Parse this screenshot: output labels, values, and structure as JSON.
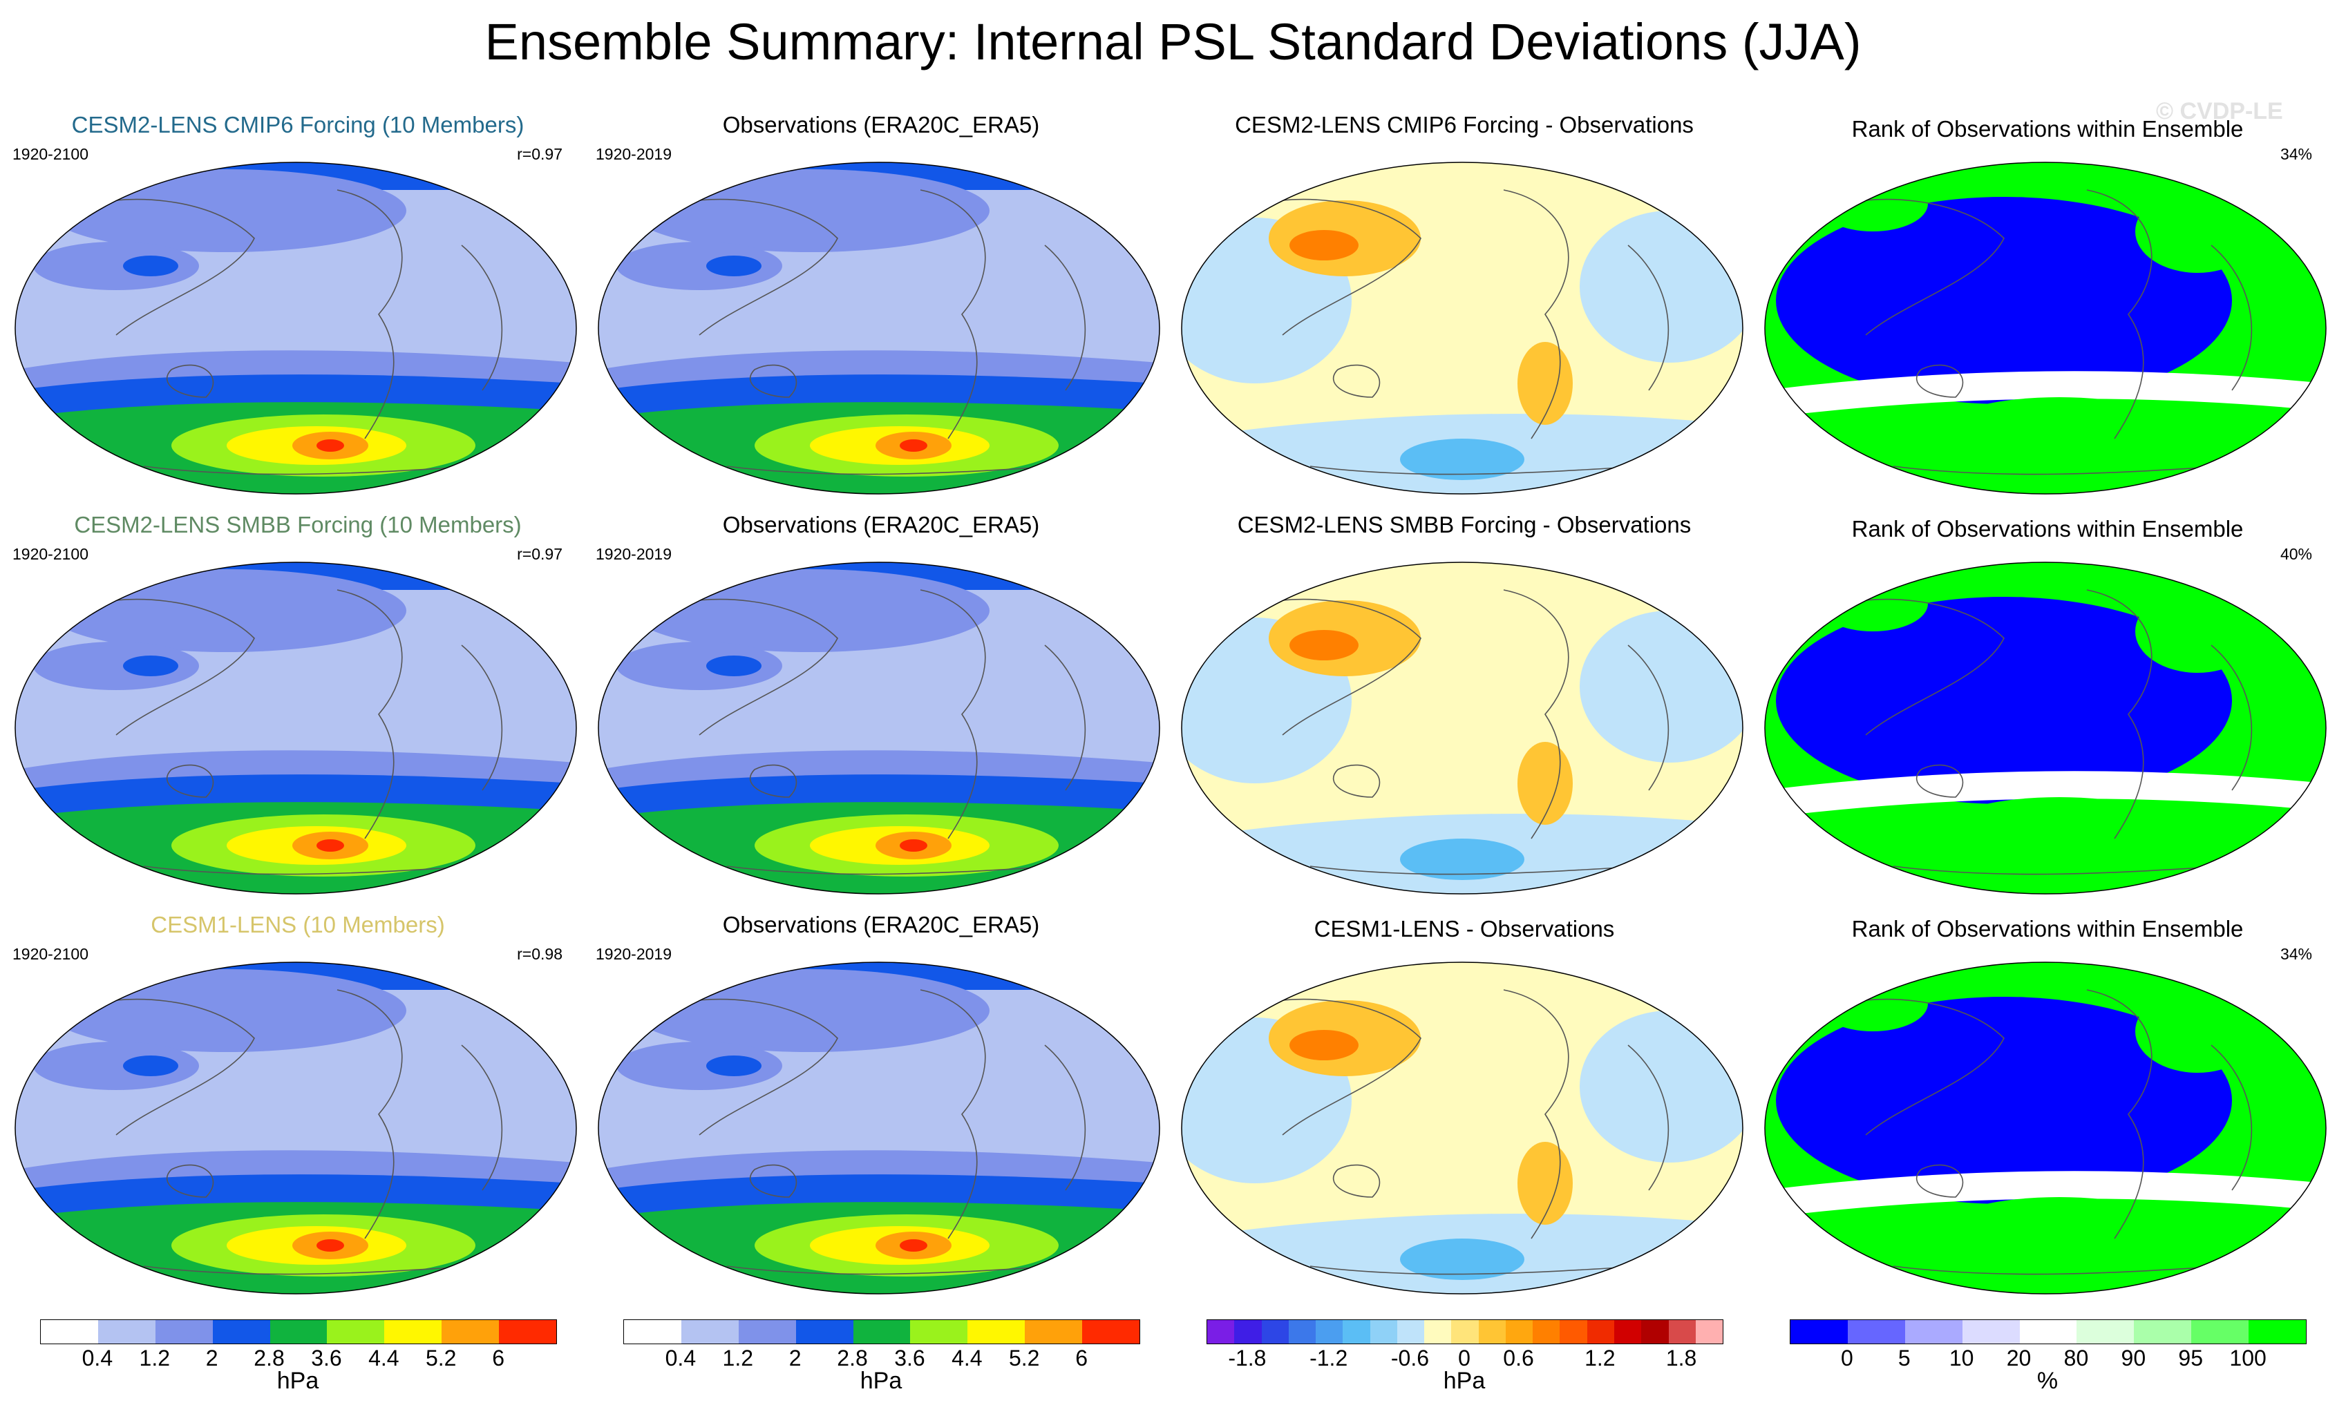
{
  "main_title": "Ensemble Summary: Internal PSL Standard Deviations (JJA)",
  "watermark": "© CVDP-LE",
  "rows": [
    {
      "model_title": "CESM2-LENS CMIP6 Forcing (10 Members)",
      "model_title_color": "#236a8c",
      "model_period": "1920-2100",
      "model_corr": "r=0.97",
      "obs_title": "Observations (ERA20C_ERA5)",
      "obs_period": "1920-2019",
      "diff_title": "CESM2-LENS CMIP6 Forcing - Observations",
      "rank_title": "Rank of Observations within Ensemble",
      "rank_pct": "34%"
    },
    {
      "model_title": "CESM2-LENS SMBB Forcing (10 Members)",
      "model_title_color": "#5f8a63",
      "model_period": "1920-2100",
      "model_corr": "r=0.97",
      "obs_title": "Observations (ERA20C_ERA5)",
      "obs_period": "1920-2019",
      "diff_title": "CESM2-LENS SMBB Forcing - Observations",
      "rank_title": "Rank of Observations within Ensemble",
      "rank_pct": "40%"
    },
    {
      "model_title": "CESM1-LENS (10 Members)",
      "model_title_color": "#d6c56a",
      "model_period": "1920-2100",
      "model_corr": "r=0.98",
      "obs_title": "Observations (ERA20C_ERA5)",
      "obs_period": "1920-2019",
      "diff_title": "CESM1-LENS - Observations",
      "rank_title": "Rank of Observations within Ensemble",
      "rank_pct": "34%"
    }
  ],
  "colorbars": {
    "std": {
      "colors": [
        "#ffffff",
        "#b4c3f2",
        "#7f92ea",
        "#1257e8",
        "#10b33e",
        "#9af21c",
        "#fff700",
        "#ffa10a",
        "#ff2a00"
      ],
      "tick_labels": [
        "0.4",
        "1.2",
        "2",
        "2.8",
        "3.6",
        "4.4",
        "5.2",
        "6"
      ],
      "unit": "hPa"
    },
    "diff": {
      "colors": [
        "#7a1ee6",
        "#3f1ee6",
        "#2d46e6",
        "#3c78ea",
        "#4b9ef0",
        "#5bbef5",
        "#8fd1f7",
        "#bfe3fa",
        "#fffbbe",
        "#ffe47a",
        "#ffc534",
        "#ffa70f",
        "#ff8000",
        "#ff5a00",
        "#f02b00",
        "#d10000",
        "#b00000",
        "#d84a4a",
        "#ffb0b0"
      ],
      "tick_labels": [
        "-1.8",
        "-1.2",
        "-0.6",
        "0",
        "0.6",
        "1.2",
        "1.8"
      ],
      "unit": "hPa"
    },
    "rank": {
      "colors": [
        "#0000ff",
        "#6666ff",
        "#aaaaff",
        "#dcdcff",
        "#ffffff",
        "#dcffdc",
        "#aaffaa",
        "#66ff66",
        "#00ff00"
      ],
      "tick_labels": [
        "0",
        "5",
        "10",
        "20",
        "80",
        "90",
        "95",
        "100"
      ],
      "unit": "%"
    }
  },
  "map_colors": {
    "std_background": "#b4c3f2",
    "std_mid": "#7f92ea",
    "std_high": "#1257e8",
    "std_green": "#10b33e",
    "std_lime": "#9af21c",
    "std_yellow": "#fff700",
    "std_orange": "#ffa10a",
    "std_red": "#ff2a00",
    "diff_background": "#fffbbe",
    "diff_blue": "#bfe3fa",
    "diff_blue_dark": "#5bbef5",
    "diff_orange": "#ffc534",
    "diff_red": "#ff8000",
    "rank_blue": "#0000ff",
    "rank_green": "#00ff00",
    "rank_white": "#ffffff",
    "coast": "#555555"
  }
}
